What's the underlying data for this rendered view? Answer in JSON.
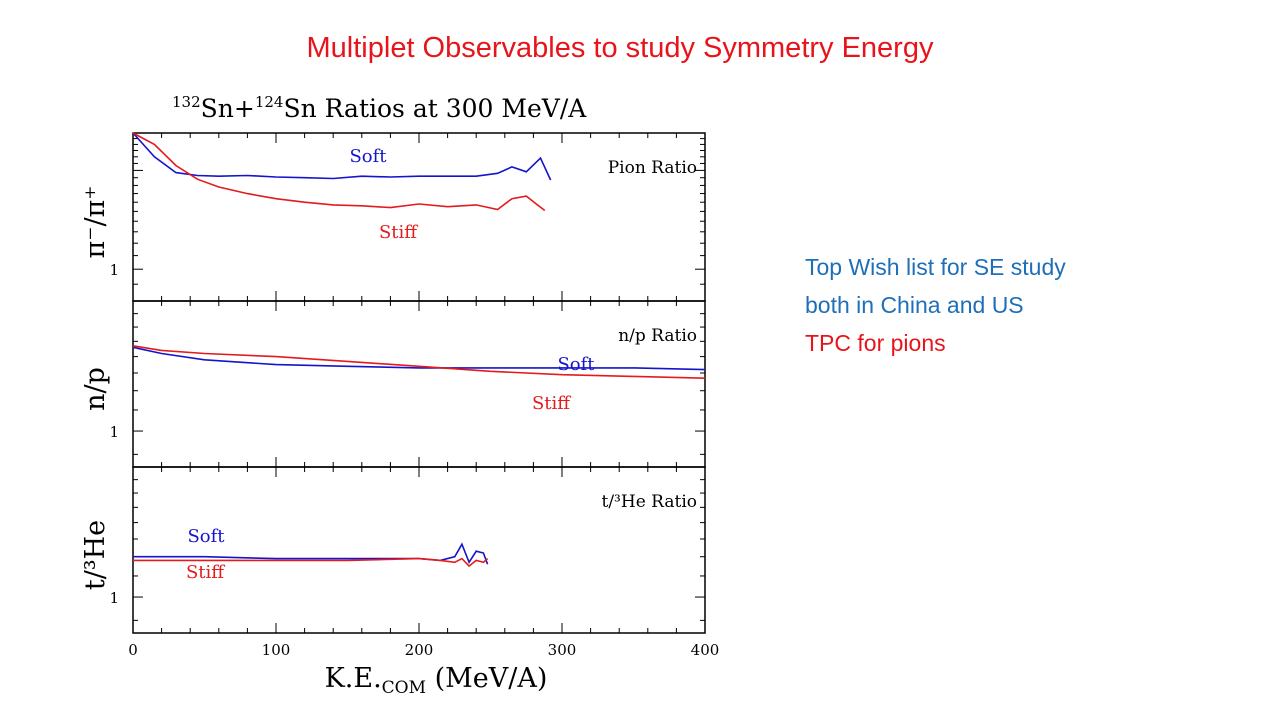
{
  "slide": {
    "title": "Multiplet Observables to study Symmetry Energy",
    "wishlist": [
      {
        "text": "Top Wish list for SE study",
        "color": "#1f6fb8"
      },
      {
        "text": "both in China and US",
        "color": "#1f6fb8"
      },
      {
        "text": "TPC for pions",
        "color": "#e8141b"
      }
    ]
  },
  "colors": {
    "soft": "#1414cc",
    "stiff": "#e41a1c",
    "axis": "#000000"
  },
  "chart_data": {
    "type": "line",
    "title": {
      "a1": "132",
      "e1": "Sn+",
      "a2": "124",
      "e2": "Sn Ratios at 300 MeV/A"
    },
    "xlabel": {
      "main": "K.E.",
      "sub": "COM",
      "unit": " (MeV/A)"
    },
    "xlim": [
      0,
      400
    ],
    "xticks": [
      "0",
      "100",
      "200",
      "300",
      "400"
    ],
    "panels": [
      {
        "label": "Pion Ratio",
        "ylabel": "π⁻/π⁺",
        "ylog": true,
        "ylim": [
          0.8,
          2.6
        ],
        "ytick_label": "1",
        "series": [
          {
            "name": "Soft",
            "x": [
              0,
              15,
              30,
              45,
              60,
              80,
              100,
              120,
              140,
              160,
              180,
              200,
              220,
              240,
              255,
              265,
              275,
              285,
              292
            ],
            "y": [
              2.6,
              2.2,
              1.97,
              1.93,
              1.92,
              1.93,
              1.91,
              1.9,
              1.89,
              1.92,
              1.91,
              1.92,
              1.92,
              1.92,
              1.96,
              2.05,
              1.98,
              2.18,
              1.87
            ]
          },
          {
            "name": "Stiff",
            "x": [
              0,
              15,
              30,
              45,
              60,
              80,
              100,
              120,
              140,
              160,
              180,
              200,
              220,
              240,
              255,
              265,
              275,
              282,
              288
            ],
            "y": [
              2.6,
              2.4,
              2.07,
              1.88,
              1.78,
              1.7,
              1.64,
              1.6,
              1.57,
              1.56,
              1.54,
              1.58,
              1.55,
              1.57,
              1.52,
              1.64,
              1.67,
              1.58,
              1.51
            ]
          }
        ]
      },
      {
        "label": "n/p Ratio",
        "ylabel": "n/p",
        "ylog": true,
        "ylim": [
          0.85,
          1.8
        ],
        "ytick_label": "1",
        "series": [
          {
            "name": "Soft",
            "x": [
              0,
              20,
              50,
              100,
              150,
              200,
              250,
              300,
              350,
              400
            ],
            "y": [
              1.46,
              1.42,
              1.38,
              1.35,
              1.34,
              1.33,
              1.33,
              1.33,
              1.33,
              1.32
            ]
          },
          {
            "name": "Stiff",
            "x": [
              0,
              20,
              50,
              100,
              150,
              200,
              250,
              300,
              350,
              400
            ],
            "y": [
              1.47,
              1.44,
              1.42,
              1.4,
              1.37,
              1.34,
              1.31,
              1.29,
              1.28,
              1.27
            ]
          }
        ]
      },
      {
        "label": "t/³He Ratio",
        "ylabel": "t/³He",
        "ylog": true,
        "ylim": [
          0.85,
          1.8
        ],
        "ytick_label": "1",
        "series": [
          {
            "name": "Soft",
            "x": [
              0,
              20,
              50,
              100,
              150,
              200,
              215,
              225,
              230,
              235,
              240,
              245,
              248
            ],
            "y": [
              1.2,
              1.2,
              1.2,
              1.19,
              1.19,
              1.19,
              1.18,
              1.2,
              1.27,
              1.17,
              1.23,
              1.22,
              1.16
            ]
          },
          {
            "name": "Stiff",
            "x": [
              0,
              20,
              50,
              100,
              150,
              200,
              215,
              225,
              230,
              235,
              240,
              245,
              248
            ],
            "y": [
              1.18,
              1.18,
              1.18,
              1.18,
              1.18,
              1.19,
              1.18,
              1.17,
              1.19,
              1.15,
              1.18,
              1.17,
              1.19
            ]
          }
        ]
      }
    ]
  }
}
